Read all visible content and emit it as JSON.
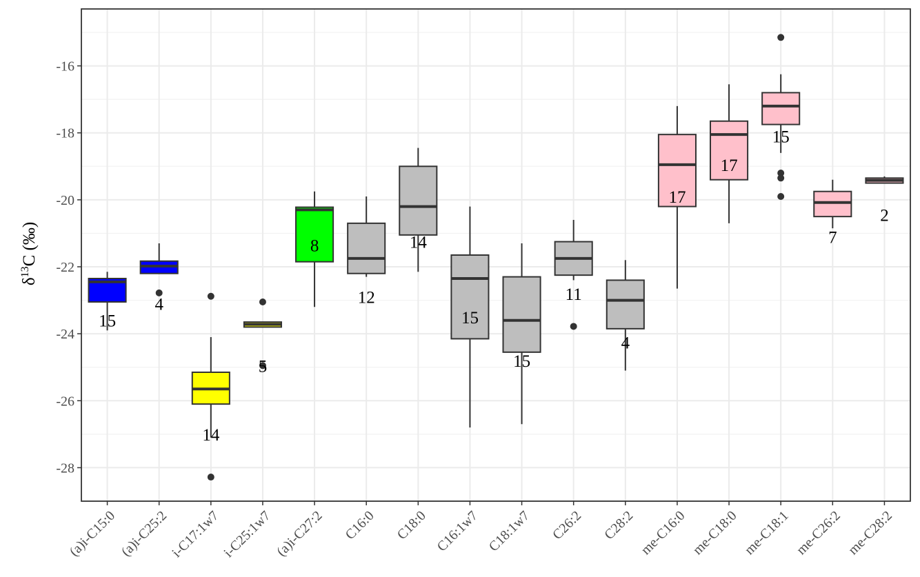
{
  "chart_data": {
    "type": "box",
    "title": "",
    "ylabel": {
      "symbol": "δ",
      "superscript": "13",
      "suffix": "C (‰)"
    },
    "xlabel": "",
    "ylim": [
      -29,
      -14.3
    ],
    "yticks": [
      -28,
      -26,
      -24,
      -22,
      -20,
      -18,
      -16
    ],
    "grid": true,
    "legend": "none",
    "colors": {
      "blue": "#0000ff",
      "yellow": "#ffff00",
      "green": "#00ff00",
      "gray": "#bebebe",
      "pink": "#ffc0cb",
      "panel_border": "#333333",
      "grid_major": "#ebebeb",
      "grid_minor": "#f2f2f2"
    },
    "boxes": [
      {
        "category": "(a)i-C15:0",
        "color": "blue",
        "min": -23.9,
        "q1": -23.05,
        "median": -22.45,
        "q3": -22.35,
        "max": -22.15,
        "outliers": [],
        "n": "15",
        "n_y": -23.6
      },
      {
        "category": "(a)i-C25:2",
        "color": "blue",
        "min": -22.2,
        "q1": -22.2,
        "median": -21.98,
        "q3": -21.83,
        "max": -21.3,
        "outliers": [
          -22.78
        ],
        "n": "4",
        "n_y": -23.1
      },
      {
        "category": "i-C17:1w7",
        "color": "yellow",
        "min": -27.1,
        "q1": -26.1,
        "median": -25.65,
        "q3": -25.15,
        "max": -24.1,
        "outliers": [
          -22.88,
          -28.28
        ],
        "n": "14",
        "n_y": -27.0
      },
      {
        "category": "i-C25:1w7",
        "color": "yellow",
        "min": -23.8,
        "q1": -23.8,
        "median": -23.72,
        "q3": -23.65,
        "max": -23.65,
        "outliers": [
          -23.05,
          -24.95
        ],
        "n": "5",
        "n_y": -24.95
      },
      {
        "category": "(a)i-C27:2",
        "color": "green",
        "min": -23.2,
        "q1": -21.85,
        "median": -20.3,
        "q3": -20.22,
        "max": -19.75,
        "outliers": [],
        "n": "8",
        "n_y": -21.35
      },
      {
        "category": "C16:0",
        "color": "gray",
        "min": -22.3,
        "q1": -22.2,
        "median": -21.75,
        "q3": -20.7,
        "max": -19.9,
        "outliers": [],
        "n": "12",
        "n_y": -22.9
      },
      {
        "category": "C18:0",
        "color": "gray",
        "min": -22.15,
        "q1": -21.05,
        "median": -20.2,
        "q3": -19.0,
        "max": -18.45,
        "outliers": [],
        "n": "14",
        "n_y": -21.25
      },
      {
        "category": "C16:1w7",
        "color": "gray",
        "min": -26.8,
        "q1": -24.15,
        "median": -22.35,
        "q3": -21.65,
        "max": -20.2,
        "outliers": [],
        "n": "15",
        "n_y": -23.5
      },
      {
        "category": "C18:1w7",
        "color": "gray",
        "min": -26.7,
        "q1": -24.55,
        "median": -23.6,
        "q3": -22.3,
        "max": -21.3,
        "outliers": [],
        "n": "15",
        "n_y": -24.8
      },
      {
        "category": "C26:2",
        "color": "gray",
        "min": -22.4,
        "q1": -22.25,
        "median": -21.75,
        "q3": -21.25,
        "max": -20.6,
        "outliers": [
          -23.78
        ],
        "n": "11",
        "n_y": -22.8
      },
      {
        "category": "C28:2",
        "color": "gray",
        "min": -25.1,
        "q1": -23.85,
        "median": -23.0,
        "q3": -22.4,
        "max": -21.8,
        "outliers": [],
        "n": "4",
        "n_y": -24.25
      },
      {
        "category": "me-C16:0",
        "color": "pink",
        "min": -22.65,
        "q1": -20.2,
        "median": -18.95,
        "q3": -18.05,
        "max": -17.2,
        "outliers": [],
        "n": "17",
        "n_y": -19.9
      },
      {
        "category": "me-C18:0",
        "color": "pink",
        "min": -20.7,
        "q1": -19.4,
        "median": -18.05,
        "q3": -17.65,
        "max": -16.55,
        "outliers": [],
        "n": "17",
        "n_y": -18.95
      },
      {
        "category": "me-C18:1",
        "color": "pink",
        "min": -18.6,
        "q1": -17.75,
        "median": -17.2,
        "q3": -16.8,
        "max": -16.25,
        "outliers": [
          -15.15,
          -19.2,
          -19.35,
          -19.9
        ],
        "n": "15",
        "n_y": -18.1
      },
      {
        "category": "me-C26:2",
        "color": "pink",
        "min": -20.85,
        "q1": -20.5,
        "median": -20.08,
        "q3": -19.75,
        "max": -19.4,
        "outliers": [],
        "n": "7",
        "n_y": -21.1
      },
      {
        "category": "me-C28:2",
        "color": "pink",
        "min": -19.5,
        "q1": -19.5,
        "median": -19.42,
        "q3": -19.35,
        "max": -19.3,
        "outliers": [],
        "n": "2",
        "n_y": -20.45
      }
    ]
  }
}
